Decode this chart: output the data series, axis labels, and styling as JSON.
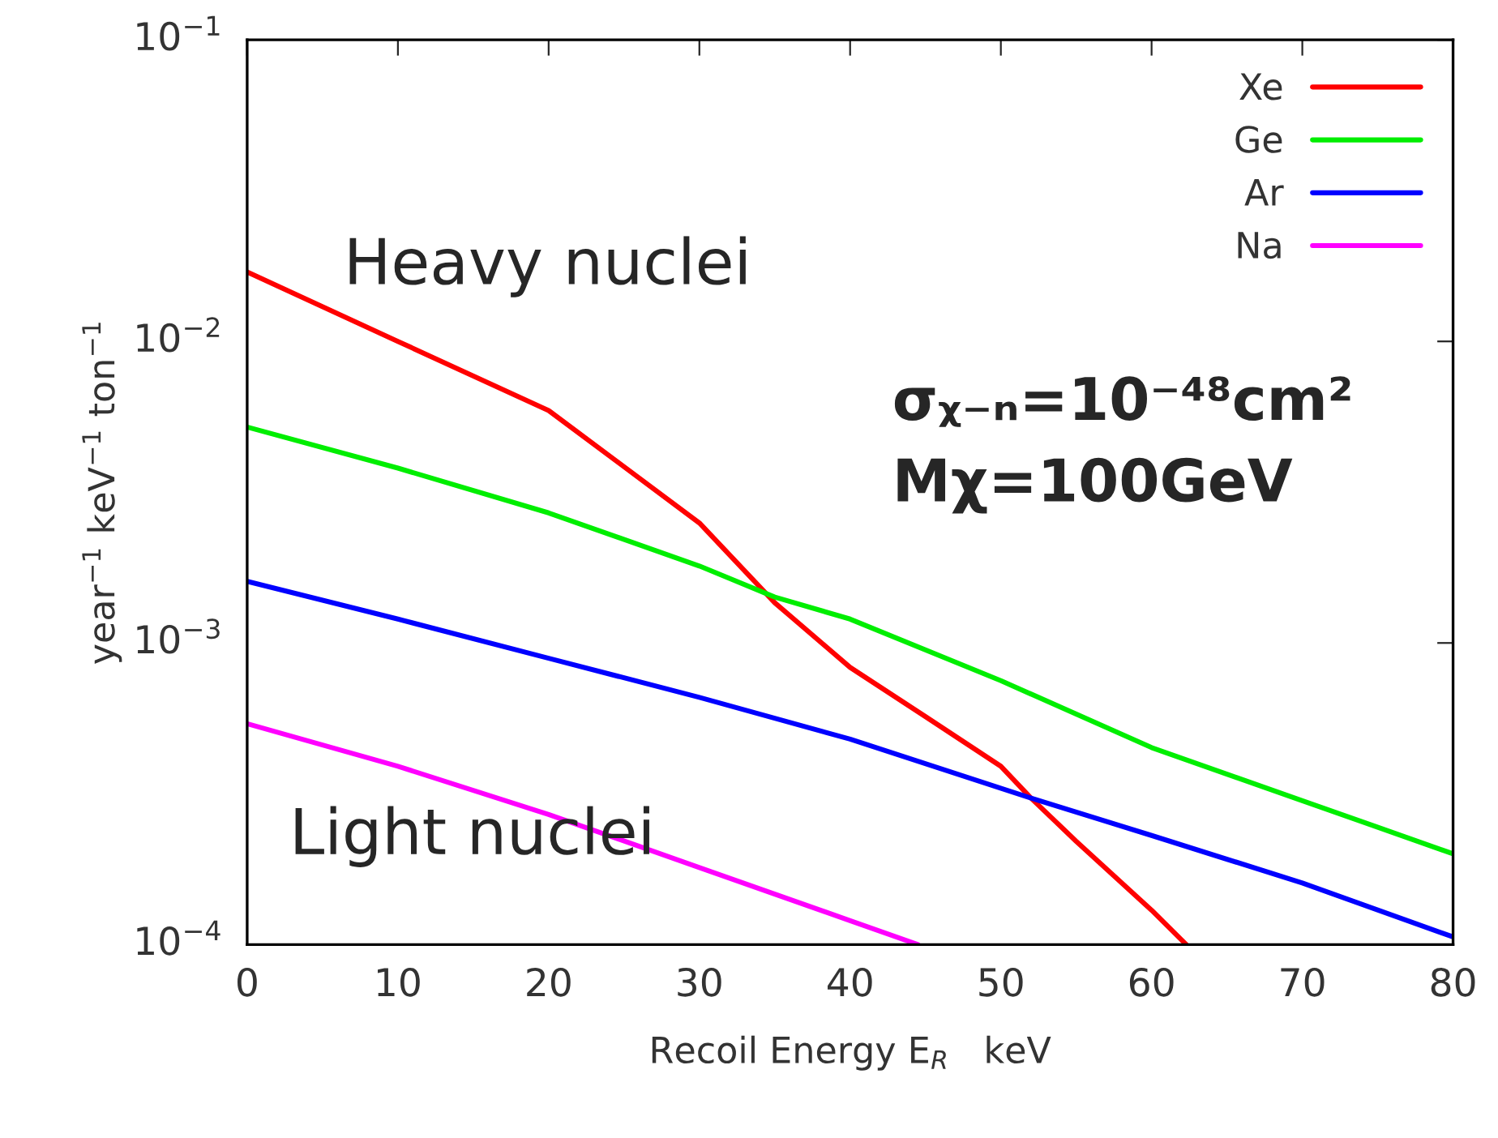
{
  "chart_data": {
    "type": "line",
    "xlabel": "Recoil Energy E$_{R}$   keV",
    "ylabel": "year$^{−1}$ keV$^{−1}$ ton$^{−1}$",
    "log": "y",
    "xlim": [
      0,
      80
    ],
    "ylim": [
      0.0001,
      0.1
    ],
    "xticks": [
      0,
      10,
      20,
      30,
      40,
      50,
      60,
      70,
      80
    ],
    "yticks": [
      {
        "value": 0.0001,
        "label": "10$^{−4}$"
      },
      {
        "value": 0.001,
        "label": "10$^{−3}$"
      },
      {
        "value": 0.01,
        "label": "10$^{−2}$"
      },
      {
        "value": 0.1,
        "label": "10$^{−1}$"
      }
    ],
    "legend": "top right",
    "grid": false,
    "series": [
      {
        "name": "Xe",
        "color": "#ff0000",
        "x": [
          0,
          10,
          20,
          30,
          35,
          40,
          45,
          50,
          52,
          55,
          60,
          62.3
        ],
        "values": [
          0.017,
          0.01,
          0.0059,
          0.0025,
          0.00136,
          0.00083,
          0.00057,
          0.00039,
          0.000306,
          0.00022,
          0.00013,
          0.0001
        ]
      },
      {
        "name": "Ge",
        "color": "#00ee00",
        "x": [
          0,
          10,
          20,
          30,
          35,
          40,
          50,
          60,
          70,
          80
        ],
        "values": [
          0.0052,
          0.0038,
          0.0027,
          0.0018,
          0.00142,
          0.0012,
          0.00075,
          0.00045,
          0.0003,
          0.0002
        ]
      },
      {
        "name": "Ar",
        "color": "#0000ff",
        "x": [
          0,
          10,
          20,
          30,
          40,
          52,
          60,
          70,
          80
        ],
        "values": [
          0.0016,
          0.0012,
          0.00089,
          0.00066,
          0.00048,
          0.000306,
          0.00023,
          0.00016,
          0.000106
        ]
      },
      {
        "name": "Na",
        "color": "#ff00ff",
        "x": [
          0,
          10,
          20,
          30,
          40,
          44.5
        ],
        "values": [
          0.00054,
          0.00039,
          0.00027,
          0.00018,
          0.00012,
          0.0001
        ]
      }
    ],
    "annotations": [
      "Heavy nuclei",
      "Light nuclei",
      "σᵪ₋ₙ=10⁻⁴⁸cm²",
      "Mχ=100GeV"
    ]
  }
}
